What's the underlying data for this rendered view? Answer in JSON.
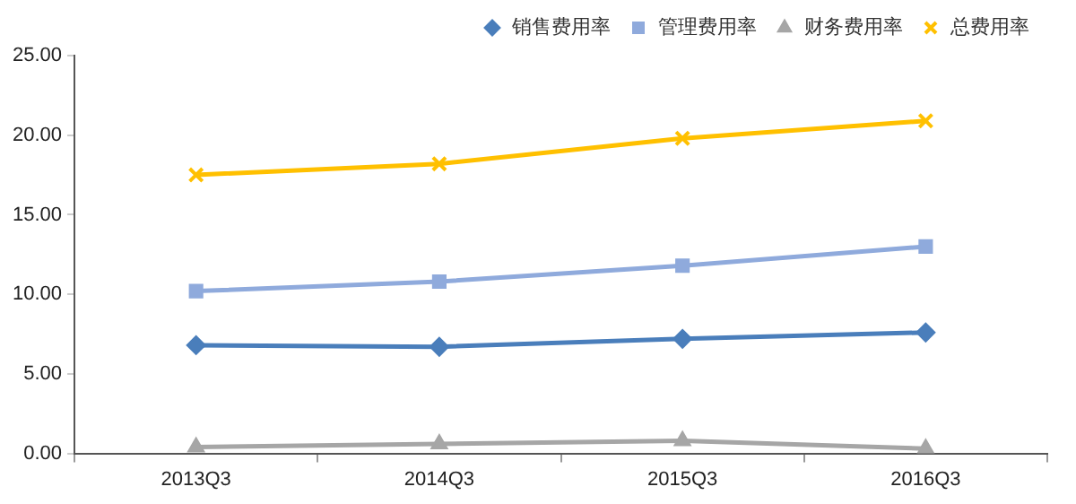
{
  "chart_data": {
    "type": "line",
    "categories": [
      "2013Q3",
      "2014Q3",
      "2015Q3",
      "2016Q3"
    ],
    "series": [
      {
        "name": "销售费用率",
        "color": "#4a7ebb",
        "marker": "diamond",
        "values": [
          6.8,
          6.7,
          7.2,
          7.6
        ]
      },
      {
        "name": "管理费用率",
        "color": "#8faadc",
        "marker": "square",
        "values": [
          10.2,
          10.8,
          11.8,
          13.0
        ]
      },
      {
        "name": "财务费用率",
        "color": "#a6a6a6",
        "marker": "triangle",
        "values": [
          0.4,
          0.6,
          0.8,
          0.3
        ]
      },
      {
        "name": "总费用率",
        "color": "#ffc000",
        "marker": "cross",
        "values": [
          17.5,
          18.2,
          19.8,
          20.9
        ]
      }
    ],
    "ylim": [
      0,
      25
    ],
    "yticks": [
      {
        "value": 0,
        "label": "0.00"
      },
      {
        "value": 5,
        "label": "5.00"
      },
      {
        "value": 10,
        "label": "10.00"
      },
      {
        "value": 15,
        "label": "15.00"
      },
      {
        "value": 20,
        "label": "20.00"
      },
      {
        "value": 25,
        "label": "25.00"
      }
    ],
    "grid": false,
    "legend": "top right"
  }
}
